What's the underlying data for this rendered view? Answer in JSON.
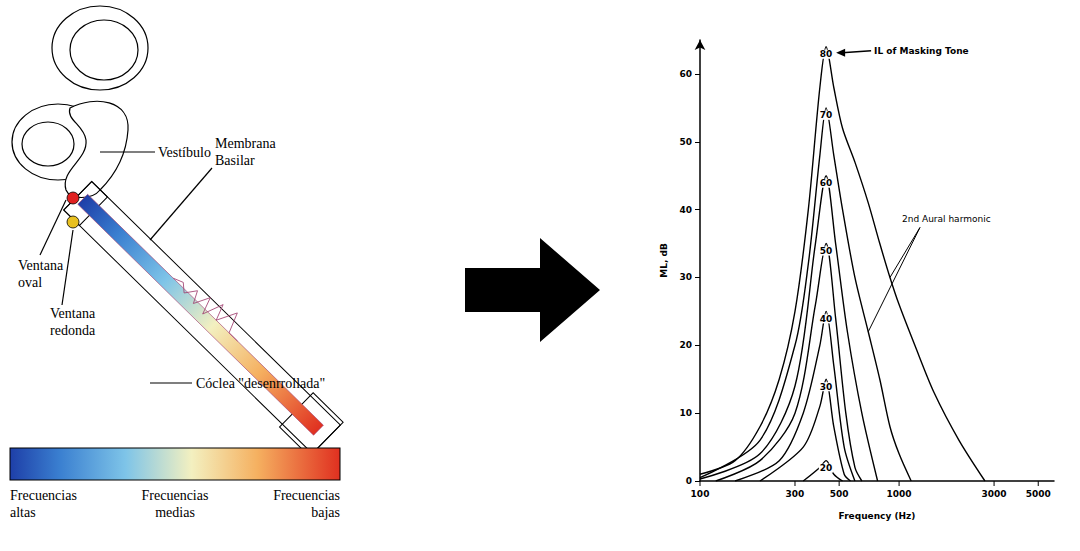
{
  "diagram": {
    "labels": {
      "vestibulo": "Vestíbulo",
      "membrana": "Membrana\nBasilar",
      "ventana_oval": "Ventana\noval",
      "ventana_redonda": "Ventana\nredonda",
      "coclea": "Cóclea \"desenrrollada\""
    },
    "color_scale": {
      "labels": [
        "Frecuencias\naltas",
        "Frecuencias\nmedias",
        "Frecuencias\nbajas"
      ]
    }
  },
  "chart_data": {
    "type": "line",
    "x_label": "Frequency (Hz)",
    "y_label": "ML, dB",
    "log": "x",
    "grid": false,
    "color": "#000000",
    "xlim": [
      100,
      6000
    ],
    "xticks": [
      100,
      300,
      500,
      1000,
      3000,
      5000
    ],
    "ylim": [
      0,
      65
    ],
    "yticks": [
      0,
      10,
      20,
      30,
      40,
      50,
      60
    ],
    "series": [
      {
        "name": "80",
        "x": [
          100,
          150,
          200,
          250,
          300,
          350,
          400,
          430,
          470,
          520,
          600,
          700,
          800,
          900,
          1000,
          1200,
          1500,
          2000,
          2700
        ],
        "values": [
          1,
          3,
          8,
          15,
          25,
          40,
          58,
          64,
          58,
          52,
          47,
          41,
          35,
          30,
          26,
          20,
          13,
          6,
          0
        ]
      },
      {
        "name": "70",
        "x": [
          100,
          200,
          300,
          350,
          400,
          430,
          470,
          520,
          600,
          700,
          800,
          900,
          1000,
          1150
        ],
        "values": [
          0.5,
          6,
          20,
          32,
          48,
          55,
          48,
          40,
          30,
          22,
          15,
          8,
          4,
          0
        ]
      },
      {
        "name": "60",
        "x": [
          100,
          200,
          300,
          380,
          430,
          480,
          550,
          650,
          780
        ],
        "values": [
          0.3,
          4,
          14,
          35,
          45,
          35,
          22,
          10,
          0
        ]
      },
      {
        "name": "50",
        "x": [
          120,
          200,
          300,
          380,
          430,
          480,
          540,
          600,
          650
        ],
        "values": [
          0,
          3,
          10,
          26,
          35,
          24,
          10,
          2,
          0
        ]
      },
      {
        "name": "40",
        "x": [
          150,
          250,
          330,
          400,
          430,
          470,
          530,
          600
        ],
        "values": [
          0,
          3,
          10,
          20,
          25,
          17,
          5,
          0
        ]
      },
      {
        "name": "30",
        "x": [
          200,
          330,
          400,
          430,
          470,
          530,
          570
        ],
        "values": [
          0,
          5,
          11,
          15,
          8,
          1,
          0
        ]
      },
      {
        "name": "20",
        "x": [
          330,
          400,
          430,
          470,
          520
        ],
        "values": [
          0,
          2,
          3,
          1,
          0
        ]
      }
    ],
    "annotations": [
      {
        "text": "IL of Masking Tone",
        "targets": [
          [
            430,
            64
          ]
        ]
      },
      {
        "text": "2nd Aural harmonic",
        "targets": [
          [
            900,
            30
          ],
          [
            700,
            22
          ]
        ]
      }
    ]
  }
}
